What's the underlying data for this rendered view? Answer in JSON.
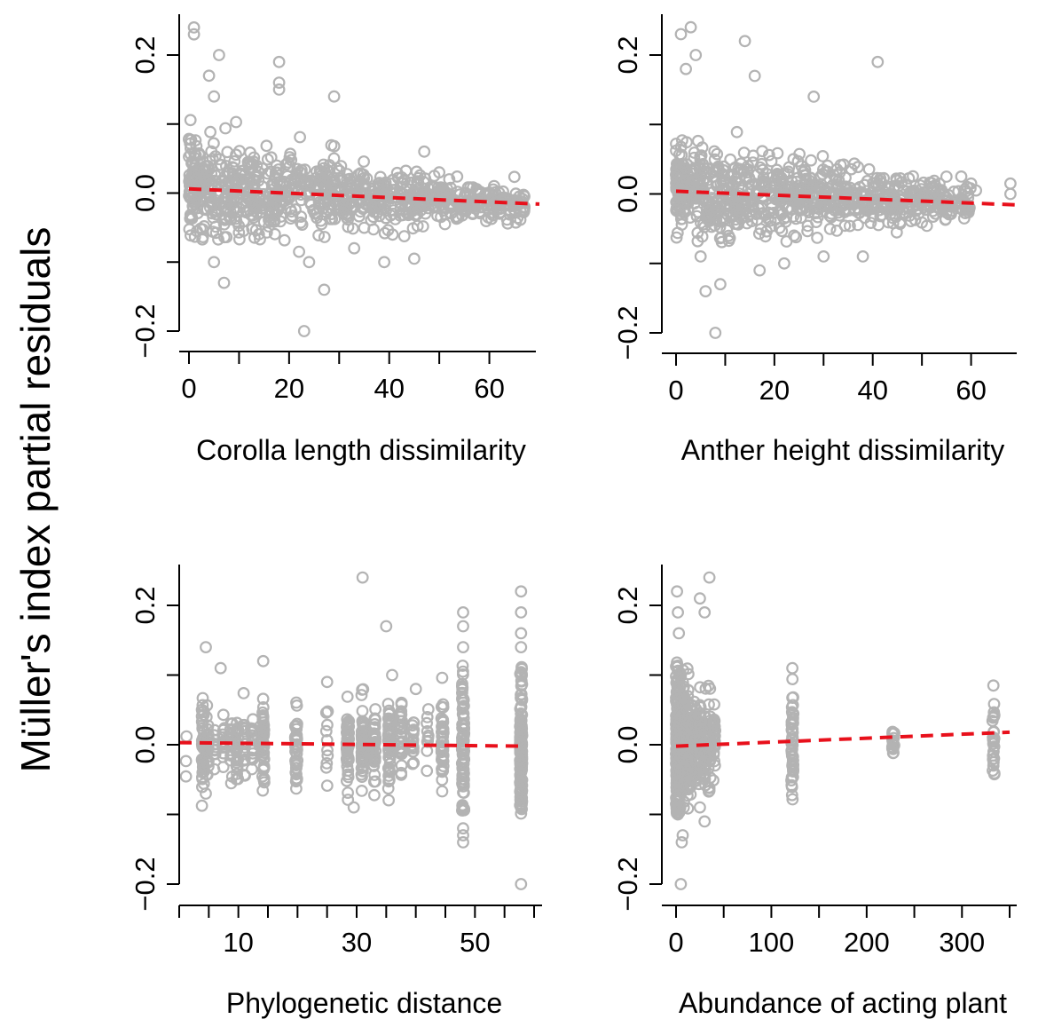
{
  "figure": {
    "ylabel": "Müller's index partial residuals",
    "colors": {
      "points": "#b3b3b3",
      "fit_line": "#e8101b",
      "axes": "#000000"
    }
  },
  "chart_data": [
    {
      "type": "scatter",
      "id": "corolla",
      "xlabel": "Corolla length dissimilarity",
      "ylabel": "Müller's index partial residuals",
      "xlim": [
        0,
        70
      ],
      "ylim": [
        -0.2,
        0.25
      ],
      "xticks": [
        0,
        10,
        20,
        30,
        40,
        50,
        60,
        70
      ],
      "xtick_labels": [
        "0",
        "",
        "20",
        "",
        "40",
        "",
        "60",
        ""
      ],
      "yticks": [
        -0.2,
        -0.1,
        0.0,
        0.1,
        0.2
      ],
      "ytick_labels": [
        "−0.2",
        "",
        "0.0",
        "",
        "0.2"
      ],
      "fit_line": {
        "x": [
          0,
          70
        ],
        "y": [
          0.006,
          -0.016
        ]
      },
      "point_generator": {
        "kind": "continuous",
        "x_range": [
          0,
          67
        ],
        "n": 900,
        "seed": 11
      },
      "outliers": [
        [
          1,
          0.24
        ],
        [
          1,
          0.23
        ],
        [
          6,
          0.2
        ],
        [
          4,
          0.17
        ],
        [
          18,
          0.19
        ],
        [
          18,
          0.16
        ],
        [
          18,
          0.15
        ],
        [
          29,
          0.14
        ],
        [
          5,
          0.14
        ],
        [
          23,
          -0.2
        ],
        [
          27,
          -0.14
        ],
        [
          7,
          -0.13
        ],
        [
          5,
          -0.1
        ],
        [
          24,
          -0.1
        ],
        [
          39,
          -0.1
        ],
        [
          45,
          -0.095
        ],
        [
          22,
          -0.085
        ],
        [
          33,
          -0.08
        ],
        [
          47,
          0.06
        ],
        [
          50,
          0.03
        ],
        [
          52,
          0.02
        ],
        [
          55,
          -0.005
        ],
        [
          57,
          -0.02
        ],
        [
          60,
          -0.01
        ],
        [
          63,
          -0.01
        ],
        [
          66,
          -0.005
        ],
        [
          67,
          -0.02
        ],
        [
          58,
          0.0
        ],
        [
          53,
          -0.01
        ],
        [
          49,
          0.025
        ],
        [
          62,
          -0.03
        ]
      ]
    },
    {
      "type": "scatter",
      "id": "anther",
      "xlabel": "Anther height dissimilarity",
      "ylabel": "Müller's index partial residuals",
      "xlim": [
        0,
        70
      ],
      "ylim": [
        -0.2,
        0.25
      ],
      "xticks": [
        0,
        10,
        20,
        30,
        40,
        50,
        60,
        70
      ],
      "xtick_labels": [
        "0",
        "",
        "20",
        "",
        "40",
        "",
        "60",
        ""
      ],
      "yticks": [
        -0.2,
        -0.1,
        0.0,
        0.1,
        0.2
      ],
      "ytick_labels": [
        "−0.2",
        "",
        "0.0",
        "",
        "0.2"
      ],
      "fit_line": {
        "x": [
          0,
          70
        ],
        "y": [
          0.004,
          -0.016
        ]
      },
      "point_generator": {
        "kind": "continuous",
        "x_range": [
          0,
          60
        ],
        "n": 850,
        "seed": 23
      },
      "outliers": [
        [
          1,
          0.23
        ],
        [
          3,
          0.24
        ],
        [
          4,
          0.2
        ],
        [
          2,
          0.18
        ],
        [
          14,
          0.22
        ],
        [
          41,
          0.19
        ],
        [
          16,
          0.17
        ],
        [
          28,
          0.14
        ],
        [
          8,
          -0.2
        ],
        [
          9,
          -0.13
        ],
        [
          6,
          -0.14
        ],
        [
          17,
          -0.11
        ],
        [
          22,
          -0.1
        ],
        [
          38,
          -0.09
        ],
        [
          30,
          -0.09
        ],
        [
          5,
          -0.09
        ],
        [
          58,
          0.025
        ],
        [
          60,
          0.015
        ],
        [
          61,
          0.005
        ],
        [
          68,
          0.015
        ],
        [
          68,
          0.0
        ],
        [
          55,
          -0.005
        ],
        [
          57,
          -0.015
        ],
        [
          52,
          0.01
        ],
        [
          48,
          -0.02
        ]
      ]
    },
    {
      "type": "scatter",
      "id": "phylo",
      "xlabel": "Phylogenetic distance",
      "ylabel": "Müller's index partial residuals",
      "xlim": [
        0,
        60
      ],
      "ylim": [
        -0.2,
        0.25
      ],
      "xticks": [
        0,
        5,
        10,
        15,
        20,
        25,
        30,
        35,
        40,
        45,
        50,
        55,
        60
      ],
      "xtick_labels": [
        "",
        "",
        "10",
        "",
        "",
        "",
        "30",
        "",
        "",
        "",
        "50",
        "",
        ""
      ],
      "yticks": [
        -0.2,
        -0.1,
        0.0,
        0.1,
        0.2
      ],
      "ytick_labels": [
        "−0.2",
        "",
        "0.0",
        "",
        "0.2"
      ],
      "fit_line": {
        "x": [
          0,
          58
        ],
        "y": [
          0.003,
          -0.002
        ]
      },
      "point_generator": {
        "kind": "columns",
        "columns": [
          [
            1.2,
            0.02,
            3
          ],
          [
            4.0,
            0.03,
            40
          ],
          [
            4.8,
            0.025,
            25
          ],
          [
            6.0,
            0.02,
            12
          ],
          [
            7.5,
            0.02,
            15
          ],
          [
            8.8,
            0.022,
            20
          ],
          [
            9.8,
            0.02,
            25
          ],
          [
            11.0,
            0.02,
            18
          ],
          [
            12.3,
            0.02,
            20
          ],
          [
            14.2,
            0.035,
            45
          ],
          [
            19.8,
            0.028,
            40
          ],
          [
            25.0,
            0.025,
            10
          ],
          [
            28.5,
            0.03,
            50
          ],
          [
            31.0,
            0.03,
            55
          ],
          [
            33.0,
            0.028,
            40
          ],
          [
            35.5,
            0.03,
            50
          ],
          [
            37.5,
            0.03,
            35
          ],
          [
            39.5,
            0.02,
            20
          ],
          [
            42.0,
            0.02,
            10
          ],
          [
            44.5,
            0.035,
            45
          ],
          [
            48.0,
            0.05,
            80
          ],
          [
            57.8,
            0.06,
            130
          ]
        ]
      },
      "outliers": [
        [
          4.5,
          0.14
        ],
        [
          7,
          0.11
        ],
        [
          31,
          0.24
        ],
        [
          35,
          0.17
        ],
        [
          48,
          0.19
        ],
        [
          48,
          0.17
        ],
        [
          48,
          0.14
        ],
        [
          57.8,
          0.22
        ],
        [
          57.8,
          0.19
        ],
        [
          57.8,
          0.16
        ],
        [
          57.8,
          0.14
        ],
        [
          57.8,
          -0.2
        ],
        [
          48,
          -0.13
        ],
        [
          48,
          -0.14
        ],
        [
          29.5,
          -0.09
        ],
        [
          4.5,
          -0.07
        ],
        [
          25,
          0.09
        ],
        [
          40,
          0.08
        ],
        [
          36,
          0.1
        ],
        [
          14.2,
          0.12
        ],
        [
          48,
          -0.12
        ],
        [
          48,
          -0.09
        ],
        [
          57.8,
          -0.09
        ]
      ]
    },
    {
      "type": "scatter",
      "id": "abundance",
      "xlabel": "Abundance of acting plant",
      "ylabel": "Müller's index partial residuals",
      "xlim": [
        0,
        350
      ],
      "ylim": [
        -0.2,
        0.25
      ],
      "xticks": [
        0,
        50,
        100,
        150,
        200,
        250,
        300,
        350
      ],
      "xtick_labels": [
        "0",
        "",
        "100",
        "",
        "200",
        "",
        "300",
        ""
      ],
      "yticks": [
        -0.2,
        -0.1,
        0.0,
        0.1,
        0.2
      ],
      "ytick_labels": [
        "−0.2",
        "",
        "0.0",
        "",
        "0.2"
      ],
      "fit_line": {
        "x": [
          0,
          350
        ],
        "y": [
          -0.002,
          0.018
        ]
      },
      "point_generator": {
        "kind": "columns",
        "columns": [
          [
            1,
            0.06,
            120
          ],
          [
            4,
            0.05,
            80
          ],
          [
            8,
            0.045,
            60
          ],
          [
            12,
            0.04,
            50
          ],
          [
            16,
            0.035,
            40
          ],
          [
            20,
            0.035,
            40
          ],
          [
            25,
            0.03,
            35
          ],
          [
            30,
            0.03,
            35
          ],
          [
            35,
            0.035,
            30
          ],
          [
            40,
            0.03,
            25
          ],
          [
            122,
            0.04,
            45
          ],
          [
            228,
            0.008,
            15
          ],
          [
            333,
            0.035,
            25
          ]
        ]
      },
      "outliers": [
        [
          1,
          0.22
        ],
        [
          2,
          0.19
        ],
        [
          3,
          0.16
        ],
        [
          30,
          0.19
        ],
        [
          35,
          0.24
        ],
        [
          25,
          0.21
        ],
        [
          5,
          -0.2
        ],
        [
          6,
          -0.14
        ],
        [
          7,
          -0.13
        ],
        [
          2,
          -0.1
        ],
        [
          30,
          -0.11
        ],
        [
          25,
          -0.09
        ],
        [
          122,
          0.11
        ],
        [
          122,
          -0.03
        ],
        [
          333,
          0.085
        ],
        [
          333,
          -0.03
        ]
      ]
    }
  ]
}
